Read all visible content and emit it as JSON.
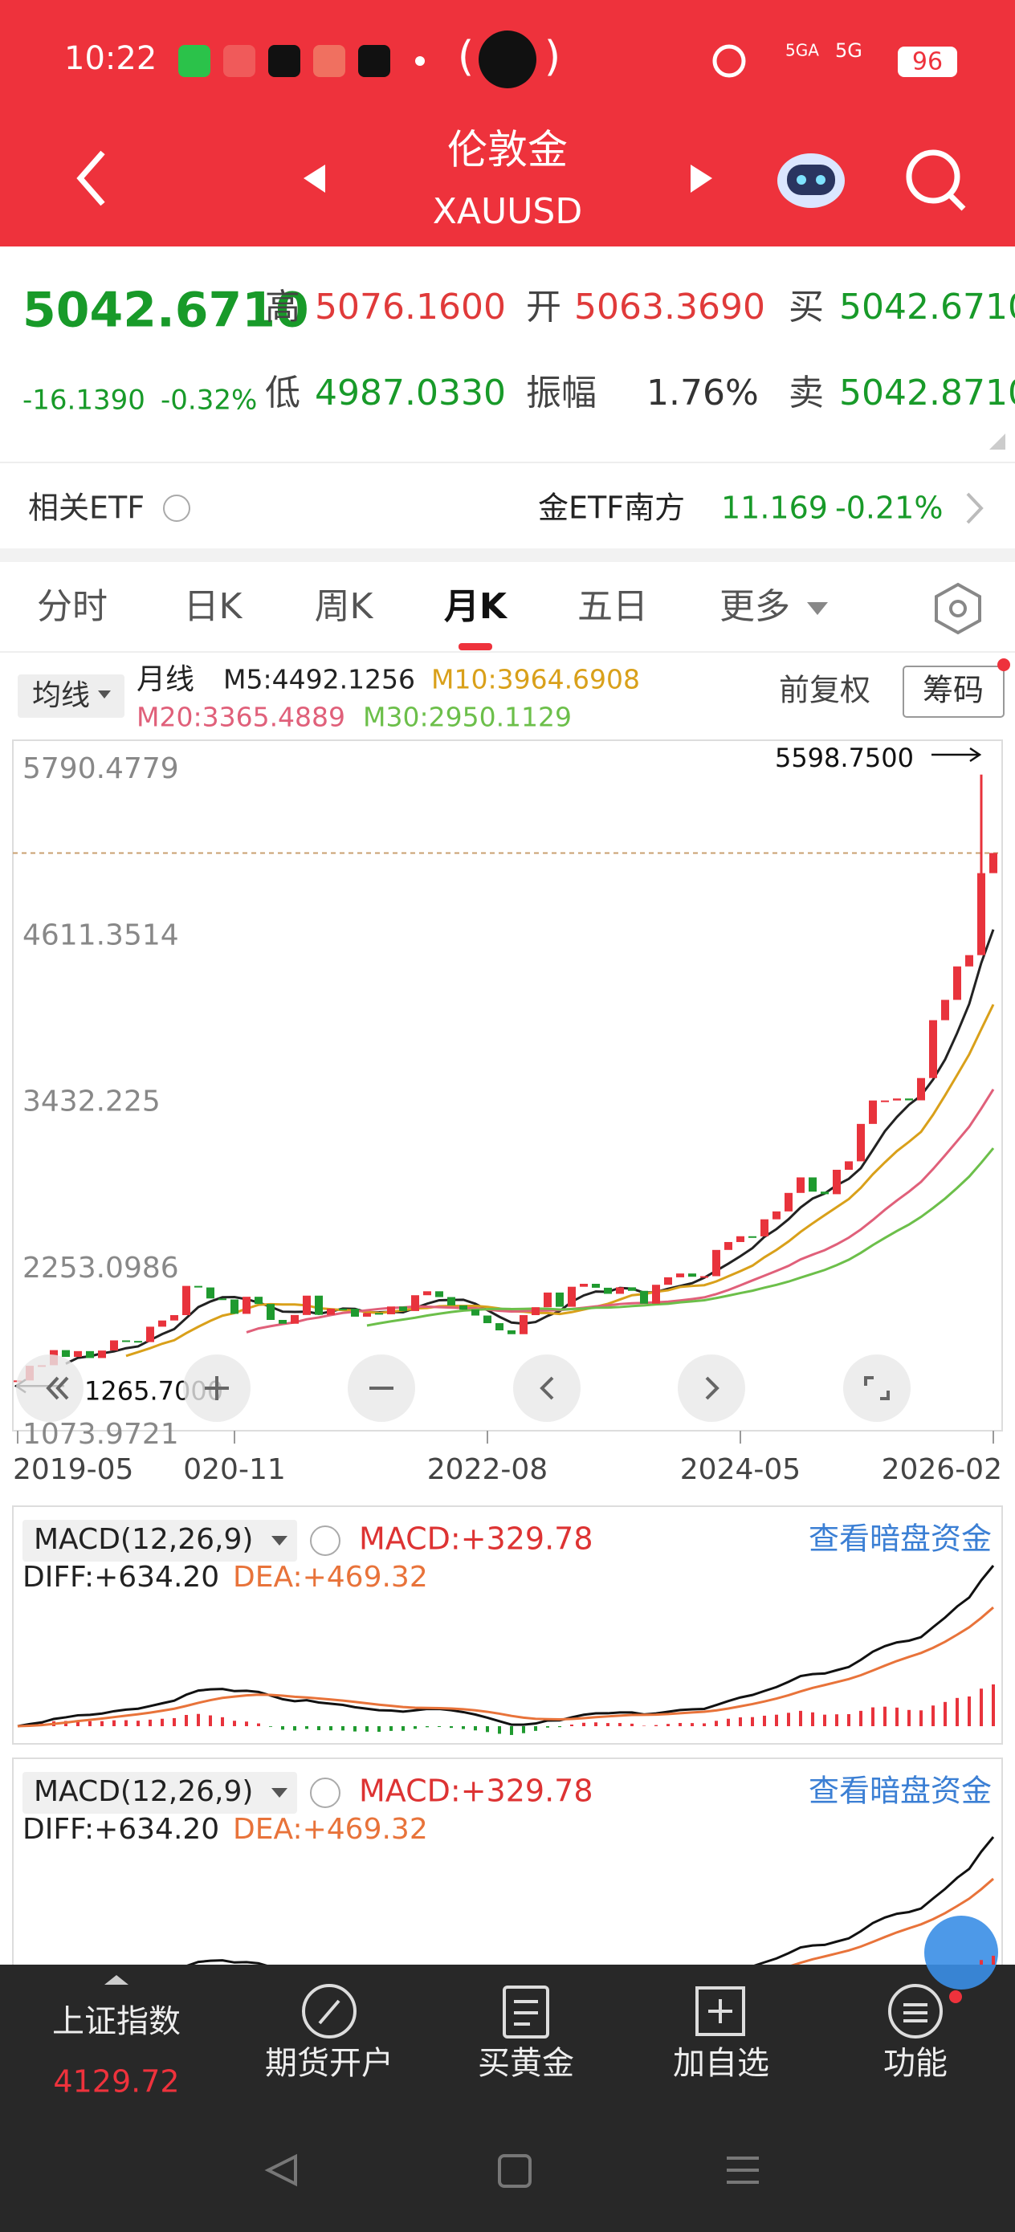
{
  "status_bar": {
    "time": "10:22",
    "net1": "5GA",
    "net2": "5G",
    "battery": "96"
  },
  "header": {
    "title": "伦敦金",
    "subtitle": "XAUUSD"
  },
  "quote": {
    "price": "5042.6710",
    "change": "-16.1390",
    "change_pct": "-0.32%",
    "items": [
      {
        "label": "高",
        "value": "5076.1600"
      },
      {
        "label": "开",
        "value": "5063.3690"
      },
      {
        "label": "买",
        "value": "5042.6710"
      },
      {
        "label": "低",
        "value": "4987.0330"
      },
      {
        "label": "振幅",
        "value": "1.76%"
      },
      {
        "label": "卖",
        "value": "5042.8710"
      }
    ]
  },
  "etf": {
    "label": "相关ETF",
    "name": "金ETF南方",
    "price": "11.169",
    "change": "-0.21%"
  },
  "tabs": [
    "分时",
    "日K",
    "周K",
    "月K",
    "五日",
    "更多"
  ],
  "ma_legend": {
    "selector": "均线",
    "period": "月线",
    "items": [
      {
        "text": "M5:4492.1256",
        "color": "#222222"
      },
      {
        "text": "M10:3964.6908",
        "color": "#d9a01a"
      },
      {
        "text": "M20:3365.4889",
        "color": "#e0607a"
      },
      {
        "text": "M30:2950.1129",
        "color": "#6cbf4a"
      }
    ],
    "adjust": "前复权",
    "chips": "筹码"
  },
  "chart_data": {
    "type": "candlestick",
    "closes": [
      1305,
      1409,
      1413,
      1520,
      1472,
      1513,
      1464,
      1517,
      1589,
      1585,
      1577,
      1686,
      1730,
      1768,
      1975,
      1964,
      1886,
      1879,
      1777,
      1898,
      1847,
      1734,
      1707,
      1769,
      1906,
      1770,
      1814,
      1813,
      1757,
      1783,
      1774,
      1829,
      1797,
      1909,
      1937,
      1896,
      1837,
      1807,
      1765,
      1711,
      1660,
      1633,
      1768,
      1824,
      1928,
      1827,
      1969,
      1990,
      1962,
      1919,
      1965,
      1940,
      1849,
      1983,
      2036,
      2063,
      2040,
      2044,
      2230,
      2286,
      2327,
      2326,
      2447,
      2503,
      2634,
      2744,
      2643,
      2625,
      2798,
      2858,
      3123,
      3289,
      3289,
      3303,
      3290,
      3448,
      3858,
      4002,
      4239,
      4319,
      4900,
      5042.671
    ],
    "up_color": "#e8333c",
    "down_color": "#1f9a2f",
    "ylim": [
      1073.9721,
      5790.4779
    ],
    "yticks": [
      5790.4779,
      4611.3514,
      3432.225,
      2253.0986,
      1073.9721
    ],
    "xticks": [
      {
        "value": 0,
        "label": "2019-05"
      },
      {
        "value": 18,
        "label": "020-11"
      },
      {
        "value": 39,
        "label": "2022-08"
      },
      {
        "value": 60,
        "label": "2024-05"
      },
      {
        "value": 81,
        "label": "2026-02"
      }
    ],
    "high": {
      "value": 5598.75,
      "label": "5598.7500"
    },
    "low": {
      "value": 1265.7,
      "label": "1265.7000"
    },
    "price_line": 5042.671
  },
  "macd_panels": [
    {
      "name": "MACD(12,26,9)",
      "macd": "MACD:+329.78",
      "diff": "DIFF:+634.20",
      "dea": "DEA:+469.32",
      "link": "查看暗盘资金"
    },
    {
      "name": "MACD(12,26,9)",
      "macd": "MACD:+329.78",
      "diff": "DIFF:+634.20",
      "dea": "DEA:+469.32",
      "link": "查看暗盘资金"
    }
  ],
  "bottom_nav": {
    "index_name": "上证指数",
    "index_value": "4129.72",
    "items": [
      "期货开户",
      "买黄金",
      "加自选",
      "功能"
    ]
  }
}
